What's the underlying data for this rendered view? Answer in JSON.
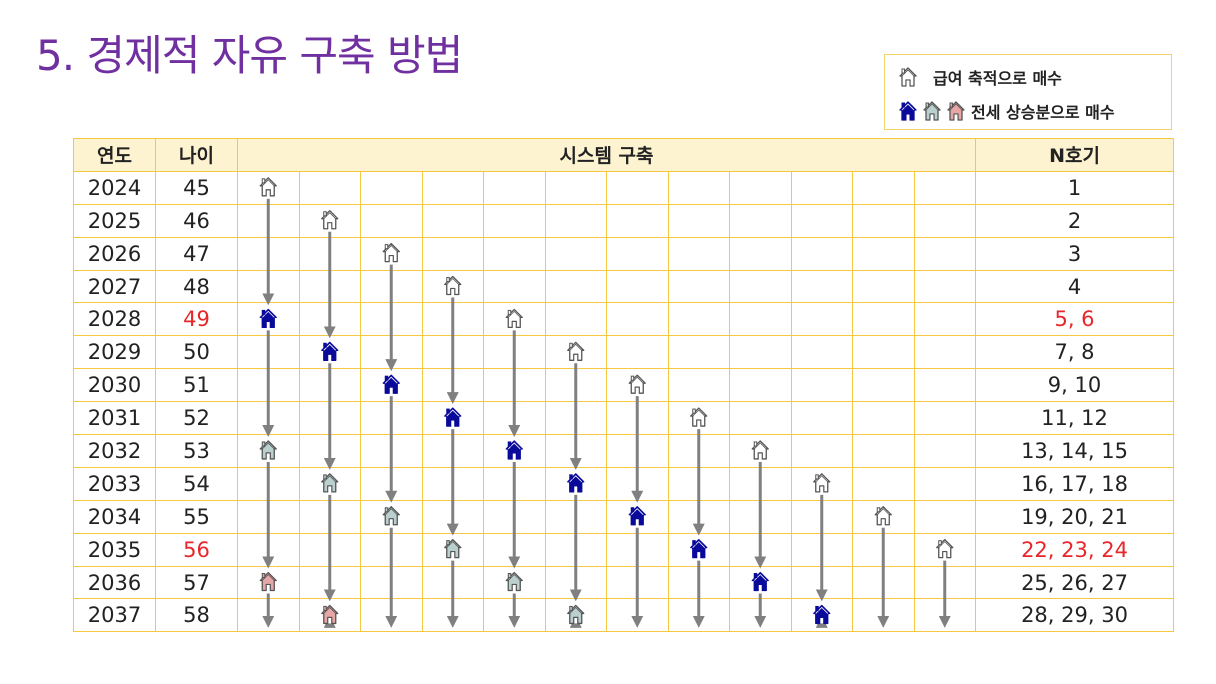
{
  "title": "5. 경제적 자유 구축 방법",
  "legend": {
    "salary_label": "급여 축적으로 매수",
    "jeonse_label": "전세 상승분으로 매수"
  },
  "colors": {
    "title": "#7030a0",
    "grid": "#f5c842",
    "header_bg": "#fdf3d0",
    "highlight": "#e8262a",
    "arrow": "#808080",
    "salary": "#ffffff",
    "jeonse_1": "#0a0a9a",
    "jeonse_2": "#b9d0cf",
    "jeonse_3": "#e8a7a7"
  },
  "headers": {
    "year": "연도",
    "age": "나이",
    "system": "시스템 구축",
    "unit": "N호기"
  },
  "rows": [
    {
      "year": "2024",
      "age": "45",
      "units": "1"
    },
    {
      "year": "2025",
      "age": "46",
      "units": "2"
    },
    {
      "year": "2026",
      "age": "47",
      "units": "3"
    },
    {
      "year": "2027",
      "age": "48",
      "units": "4"
    },
    {
      "year": "2028",
      "age": "49",
      "units": "5, 6",
      "highlight": true
    },
    {
      "year": "2029",
      "age": "50",
      "units": "7, 8"
    },
    {
      "year": "2030",
      "age": "51",
      "units": "9, 10"
    },
    {
      "year": "2031",
      "age": "52",
      "units": "11, 12"
    },
    {
      "year": "2032",
      "age": "53",
      "units": "13, 14, 15"
    },
    {
      "year": "2033",
      "age": "54",
      "units": "16, 17, 18"
    },
    {
      "year": "2034",
      "age": "55",
      "units": "19, 20, 21"
    },
    {
      "year": "2035",
      "age": "56",
      "units": "22, 23, 24",
      "highlight": true
    },
    {
      "year": "2036",
      "age": "57",
      "units": "25, 26, 27"
    },
    {
      "year": "2037",
      "age": "58",
      "units": "28, 29, 30"
    }
  ],
  "system_columns": [
    {
      "events": [
        {
          "year": "2024",
          "type": "salary"
        },
        {
          "year": "2028",
          "type": "jeonse_1"
        },
        {
          "year": "2032",
          "type": "jeonse_2"
        },
        {
          "year": "2036",
          "type": "jeonse_3"
        }
      ]
    },
    {
      "events": [
        {
          "year": "2025",
          "type": "salary"
        },
        {
          "year": "2029",
          "type": "jeonse_1"
        },
        {
          "year": "2033",
          "type": "jeonse_2"
        },
        {
          "year": "2037",
          "type": "jeonse_3"
        }
      ]
    },
    {
      "events": [
        {
          "year": "2026",
          "type": "salary"
        },
        {
          "year": "2030",
          "type": "jeonse_1"
        },
        {
          "year": "2034",
          "type": "jeonse_2"
        }
      ]
    },
    {
      "events": [
        {
          "year": "2027",
          "type": "salary"
        },
        {
          "year": "2031",
          "type": "jeonse_1"
        },
        {
          "year": "2035",
          "type": "jeonse_2"
        }
      ]
    },
    {
      "events": [
        {
          "year": "2028",
          "type": "salary"
        },
        {
          "year": "2032",
          "type": "jeonse_1"
        },
        {
          "year": "2036",
          "type": "jeonse_2"
        }
      ]
    },
    {
      "events": [
        {
          "year": "2029",
          "type": "salary"
        },
        {
          "year": "2033",
          "type": "jeonse_1"
        },
        {
          "year": "2037",
          "type": "jeonse_2"
        }
      ]
    },
    {
      "events": [
        {
          "year": "2030",
          "type": "salary"
        },
        {
          "year": "2034",
          "type": "jeonse_1"
        }
      ]
    },
    {
      "events": [
        {
          "year": "2031",
          "type": "salary"
        },
        {
          "year": "2035",
          "type": "jeonse_1"
        }
      ]
    },
    {
      "events": [
        {
          "year": "2032",
          "type": "salary"
        },
        {
          "year": "2036",
          "type": "jeonse_1"
        }
      ]
    },
    {
      "events": [
        {
          "year": "2033",
          "type": "salary"
        },
        {
          "year": "2037",
          "type": "jeonse_1"
        }
      ]
    },
    {
      "events": [
        {
          "year": "2034",
          "type": "salary"
        }
      ]
    },
    {
      "events": [
        {
          "year": "2035",
          "type": "salary"
        }
      ]
    }
  ]
}
